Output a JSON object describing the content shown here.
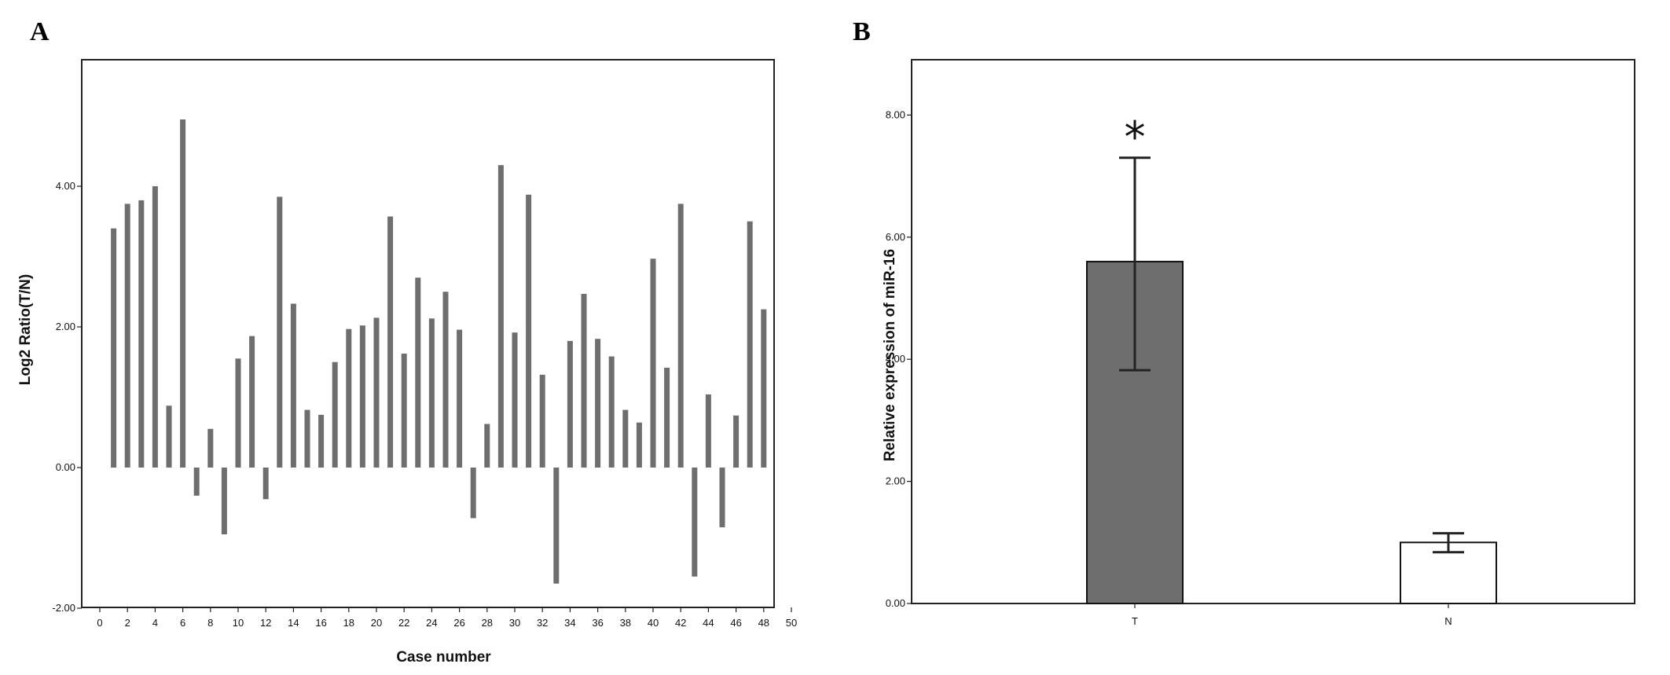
{
  "panels": {
    "a": {
      "letter": "A"
    },
    "b": {
      "letter": "B"
    }
  },
  "colors": {
    "bar_fill_a": "#6e6e6e",
    "bar_fill_b_t": "#6e6e6e",
    "bar_fill_b_n": "#ffffff",
    "axis": "#222222"
  },
  "chart_data": [
    {
      "type": "bar",
      "xlabel": "Case number",
      "ylabel": "Log2 Ratio(T/N)",
      "ylim": [
        -2.0,
        6.0
      ],
      "xlim": [
        0,
        50
      ],
      "x_ticks": [
        "0",
        "2",
        "4",
        "6",
        "8",
        "10",
        "12",
        "14",
        "16",
        "18",
        "20",
        "22",
        "24",
        "26",
        "28",
        "30",
        "32",
        "34",
        "36",
        "38",
        "40",
        "42",
        "44",
        "46",
        "48",
        "50"
      ],
      "y_ticks": [
        "-2.00",
        "0.00",
        "2.00",
        "4.00"
      ],
      "grid": false,
      "x": [
        1,
        2,
        3,
        4,
        5,
        6,
        7,
        8,
        9,
        10,
        11,
        12,
        13,
        14,
        15,
        16,
        17,
        18,
        19,
        20,
        21,
        22,
        23,
        24,
        25,
        26,
        27,
        28,
        29,
        30,
        31,
        32,
        33,
        34,
        35,
        36,
        37,
        38,
        39,
        40,
        41,
        42,
        43,
        44,
        45,
        46,
        47,
        48
      ],
      "values": [
        3.4,
        3.75,
        3.8,
        4.0,
        0.88,
        4.95,
        -0.4,
        0.55,
        -0.95,
        1.55,
        1.87,
        -0.45,
        3.85,
        2.33,
        0.82,
        0.75,
        1.5,
        1.97,
        2.02,
        2.13,
        3.57,
        1.62,
        2.7,
        2.12,
        2.5,
        1.96,
        -0.72,
        0.62,
        4.3,
        1.92,
        3.88,
        1.32,
        -1.65,
        1.8,
        2.47,
        1.83,
        1.58,
        0.82,
        0.64,
        2.97,
        1.42,
        3.75,
        -1.55,
        1.04,
        -0.85,
        0.74,
        3.5,
        2.25
      ]
    },
    {
      "type": "bar",
      "xlabel": "",
      "ylabel": "Relative expression of miR-16",
      "ylim": [
        0.0,
        8.0
      ],
      "categories": [
        "T",
        "N"
      ],
      "values": [
        5.6,
        1.0
      ],
      "error_upper": [
        7.3,
        1.15
      ],
      "error_lower": [
        3.82,
        0.84
      ],
      "y_ticks": [
        "0.00",
        "2.00",
        "4.00",
        "6.00",
        "8.00"
      ],
      "annotation": "*",
      "grid": false
    }
  ]
}
